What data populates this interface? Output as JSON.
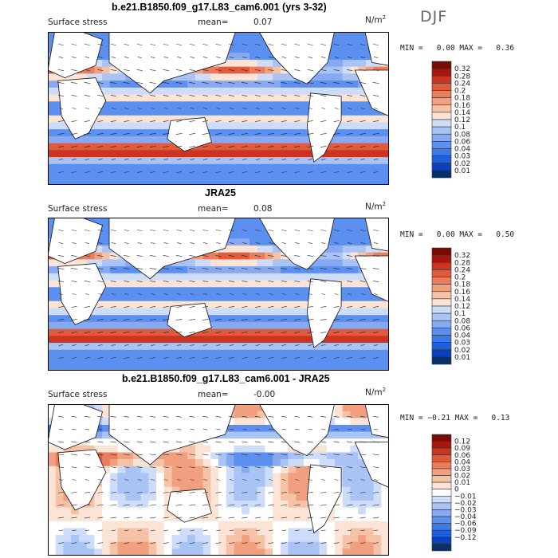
{
  "season": "DJF",
  "colors": {
    "abs_scale": [
      "#08306b",
      "#0a3fc0",
      "#1f5fe0",
      "#3b7ae8",
      "#5b8ff0",
      "#86a9f2",
      "#a9c3f5",
      "#cddcf8",
      "#fbe3d6",
      "#f6c2a6",
      "#f1a07f",
      "#ea7d5c",
      "#e05a3c",
      "#cc3320",
      "#a8150c",
      "#7a0a04"
    ],
    "diff_scale": [
      "#08306b",
      "#0a3fc0",
      "#1f5fe0",
      "#3b7ae8",
      "#5b8ff0",
      "#86a9f2",
      "#a9c3f5",
      "#cddcf8",
      "#ffffff",
      "#fbe3d6",
      "#f6c2a6",
      "#f1a07f",
      "#ea7d5c",
      "#e05a3c",
      "#cc3320",
      "#a8150c",
      "#7a0a04"
    ]
  },
  "chart_data": [
    {
      "type": "heatmap",
      "title": "b.e21.B1850.f09_g17.L83_cam6.001 (yrs 3-32)",
      "variable": "Surface stress",
      "mean_label": "mean=",
      "mean": "0.07",
      "units": "N/m",
      "units_exp": "2",
      "min_label": "MIN =",
      "min": "0.00",
      "max_label": "MAX =",
      "max": "0.36",
      "colorbar_ticks": [
        "0.32",
        "0.28",
        "0.24",
        "0.2",
        "0.18",
        "0.16",
        "0.14",
        "0.12",
        "0.1",
        "0.08",
        "0.06",
        "0.04",
        "0.03",
        "0.02",
        "0.01"
      ]
    },
    {
      "type": "heatmap",
      "title": "JRA25",
      "variable": "Surface stress",
      "mean_label": "mean=",
      "mean": "0.08",
      "units": "N/m",
      "units_exp": "2",
      "min_label": "MIN =",
      "min": "0.00",
      "max_label": "MAX =",
      "max": "0.50",
      "colorbar_ticks": [
        "0.32",
        "0.28",
        "0.24",
        "0.2",
        "0.18",
        "0.16",
        "0.14",
        "0.12",
        "0.1",
        "0.08",
        "0.06",
        "0.04",
        "0.03",
        "0.02",
        "0.01"
      ]
    },
    {
      "type": "heatmap",
      "title": "b.e21.B1850.f09_g17.L83_cam6.001 - JRA25",
      "variable": "Surface stress",
      "mean_label": "mean=",
      "mean": "-0.00",
      "units": "N/m",
      "units_exp": "2",
      "min_label": "MIN =",
      "min": "−0.21",
      "max_label": "MAX =",
      "max": "0.13",
      "colorbar_ticks": [
        "0.12",
        "0.09",
        "0.06",
        "0.04",
        "0.03",
        "0.02",
        "0.01",
        "0",
        "−0.01",
        "−0.02",
        "−0.03",
        "−0.04",
        "−0.06",
        "−0.09",
        "−0.12"
      ]
    }
  ]
}
